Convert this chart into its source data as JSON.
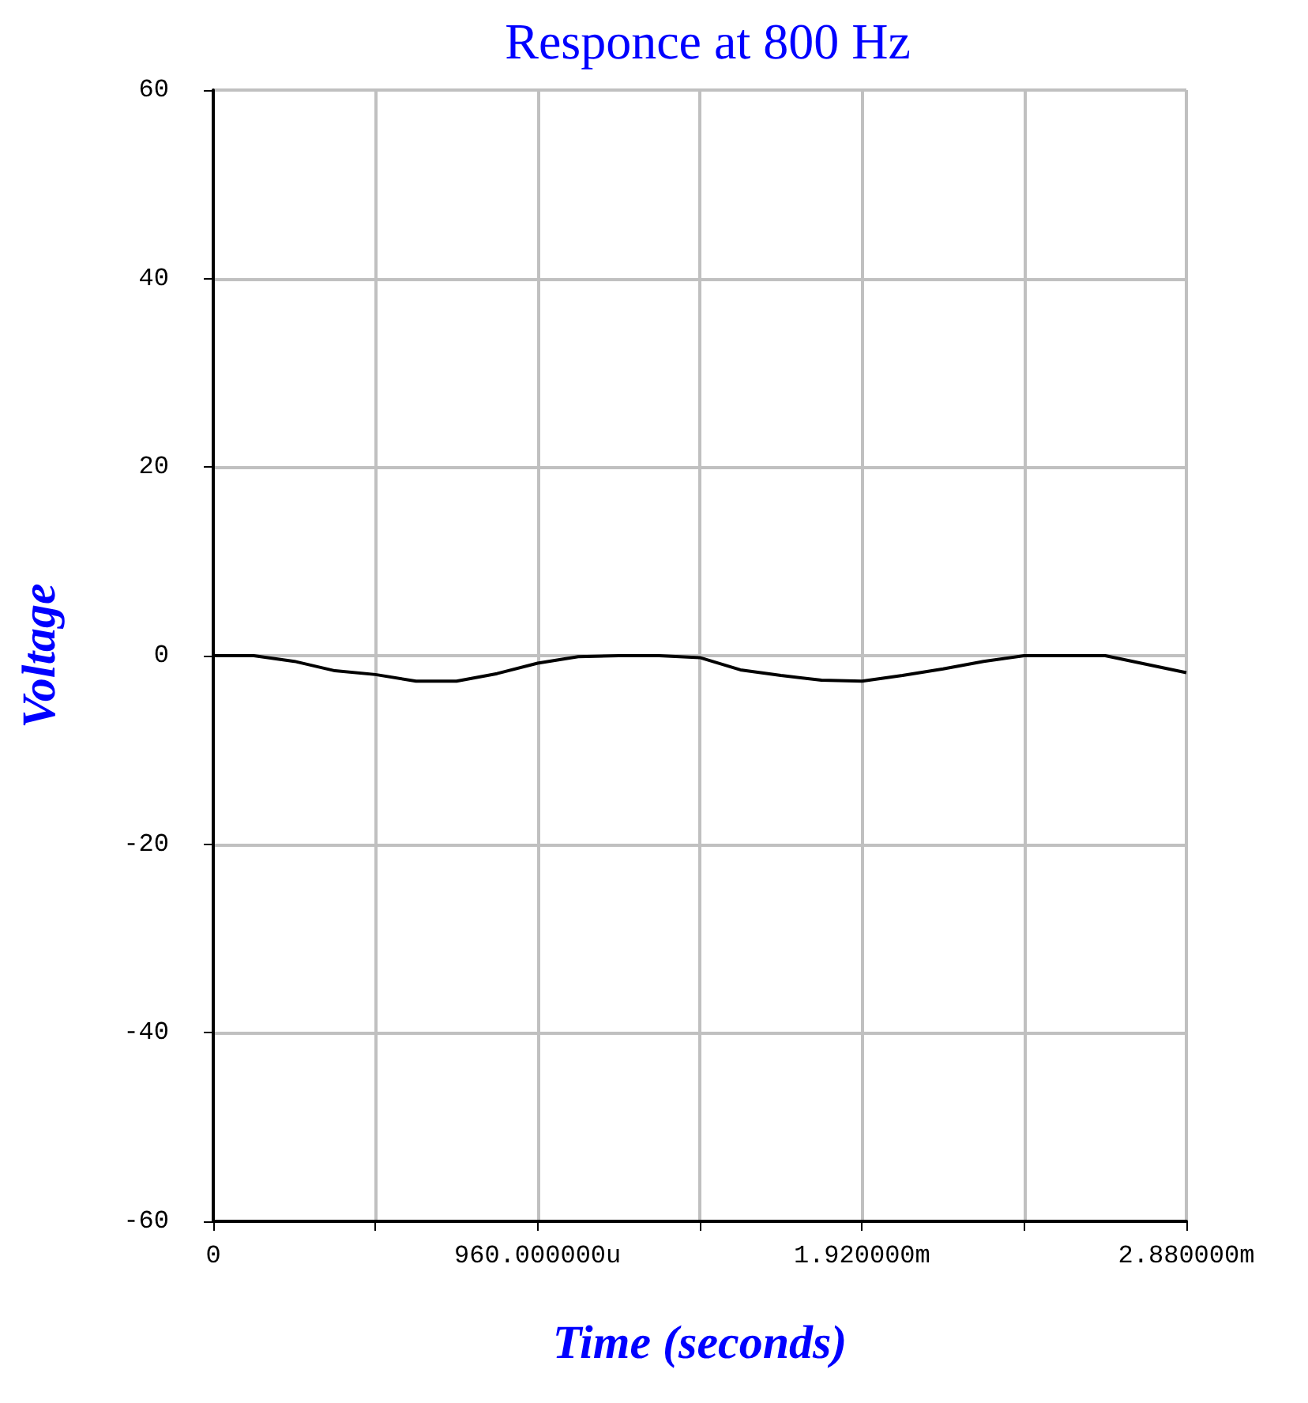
{
  "chart_data": {
    "type": "line",
    "title": "Responce at 800 Hz",
    "xlabel": "Time (seconds)",
    "ylabel": "Voltage",
    "categories": [
      "0",
      null,
      null,
      null,
      null,
      null,
      null,
      null,
      "960.000000u",
      null,
      null,
      null,
      null,
      null,
      null,
      null,
      "1.920000m",
      null,
      null,
      null,
      null,
      null,
      null,
      null,
      "2.880000m"
    ],
    "series": [
      {
        "color": "#000000",
        "values": [
          0,
          0,
          -0.6,
          -1.6,
          -2.0,
          -2.7,
          -2.7,
          -1.9,
          -0.8,
          -0.1,
          0,
          0,
          -0.2,
          -1.5,
          -2.1,
          -2.6,
          -2.7,
          -2.1,
          -1.4,
          -0.6,
          0,
          0,
          0,
          -0.9,
          -1.8
        ]
      }
    ],
    "ylim": [
      -60,
      60
    ],
    "yticks": [
      -60,
      -40,
      -20,
      0,
      20,
      40,
      60
    ],
    "grid": true,
    "marker": "none",
    "line_style": "solid"
  }
}
